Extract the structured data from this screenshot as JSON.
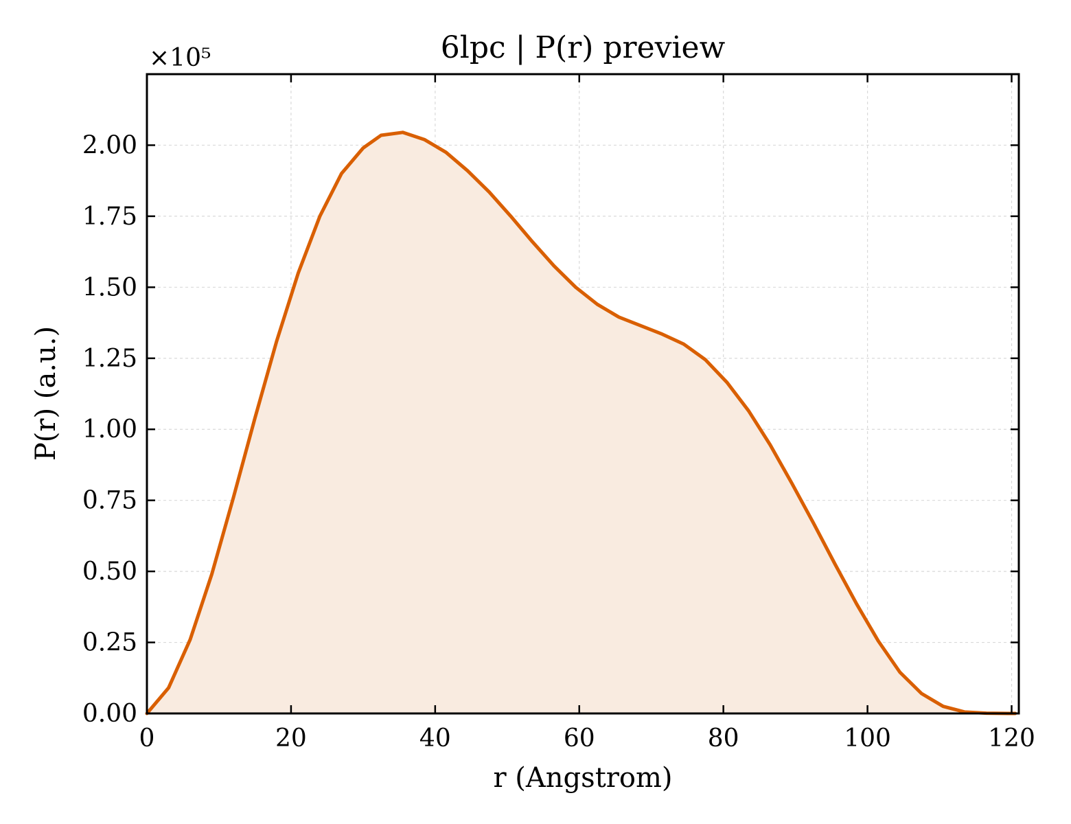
{
  "chart_data": {
    "type": "area",
    "title": "6lpc | P(r) preview",
    "xlabel": "r (Angstrom)",
    "ylabel": "P(r) (a.u.)",
    "y_scale_label": "×10⁵",
    "xlim": [
      0,
      121
    ],
    "ylim": [
      0,
      2.25
    ],
    "y_multiplier": 100000,
    "x_ticks": [
      0,
      20,
      40,
      60,
      80,
      100,
      120
    ],
    "x_tick_labels": [
      "0",
      "20",
      "40",
      "60",
      "80",
      "100",
      "120"
    ],
    "y_ticks": [
      0,
      0.25,
      0.5,
      0.75,
      1.0,
      1.25,
      1.5,
      1.75,
      2.0
    ],
    "y_tick_labels": [
      "0.00",
      "0.25",
      "0.50",
      "0.75",
      "1.00",
      "1.25",
      "1.50",
      "1.75",
      "2.00"
    ],
    "grid": true,
    "legend": "none",
    "series": [
      {
        "x": [
          0,
          3,
          6,
          9,
          12,
          15,
          18,
          21,
          24,
          27,
          30,
          32.5,
          35.5,
          38.5,
          41.5,
          44.5,
          47.5,
          50.5,
          53.5,
          56.5,
          59.5,
          62.5,
          65.5,
          68.5,
          71.5,
          74.5,
          77.5,
          80.5,
          83.5,
          86.5,
          89.5,
          92.5,
          95.5,
          98.5,
          101.5,
          104.5,
          107.5,
          110.5,
          113.5,
          116.5,
          119.5,
          120.5
        ],
        "y": [
          0.0,
          0.09,
          0.26,
          0.49,
          0.76,
          1.04,
          1.31,
          1.55,
          1.75,
          1.9,
          1.99,
          2.035,
          2.045,
          2.02,
          1.975,
          1.91,
          1.835,
          1.75,
          1.66,
          1.575,
          1.5,
          1.44,
          1.395,
          1.365,
          1.335,
          1.3,
          1.245,
          1.165,
          1.065,
          0.945,
          0.81,
          0.67,
          0.525,
          0.385,
          0.255,
          0.145,
          0.07,
          0.025,
          0.005,
          0.001,
          0.0,
          0.0
        ]
      }
    ],
    "colors": {
      "line": "#d95f02",
      "fill": "#f9ebe0",
      "grid": "#d9d9d9",
      "axes": "#000000"
    }
  }
}
